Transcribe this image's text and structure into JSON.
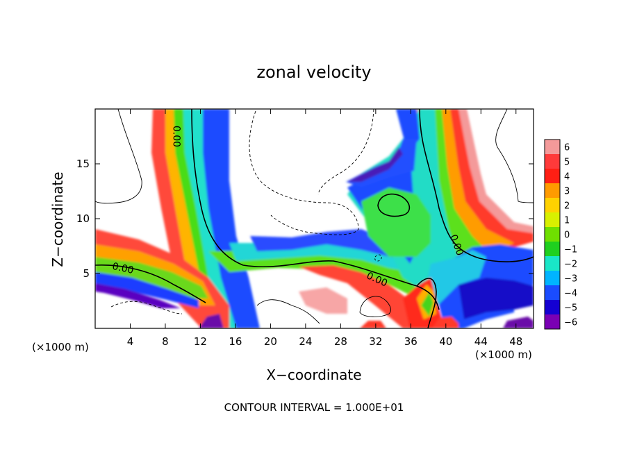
{
  "chart_data": {
    "type": "heatmap",
    "title": "zonal velocity",
    "xlabel": "X−coordinate",
    "ylabel": "Z−coordinate",
    "x_unit_left": "(×1000 m)",
    "x_unit_right": "(×1000 m)",
    "xlim": [
      0,
      50
    ],
    "ylim": [
      0,
      20
    ],
    "x_ticks": [
      4,
      8,
      12,
      16,
      20,
      24,
      28,
      32,
      36,
      40,
      44,
      48
    ],
    "y_ticks": [
      5,
      10,
      15
    ],
    "colorbar": {
      "min": -6,
      "max": 6,
      "ticks": [
        "6",
        "5",
        "4",
        "3",
        "2",
        "1",
        "0",
        "−1",
        "−2",
        "−3",
        "−4",
        "−5",
        "−6"
      ],
      "colors": [
        "#f49a9a",
        "#ff3a3a",
        "#ff1f14",
        "#ff9b00",
        "#ffd200",
        "#d8f000",
        "#6fe000",
        "#1fd01f",
        "#19e6c8",
        "#00b4ff",
        "#1a4cff",
        "#1400d2",
        "#7a00b4"
      ]
    },
    "contour_labels": [
      {
        "text": "0.00",
        "x": 8.9,
        "y": 17.5,
        "rotate": 90
      },
      {
        "text": "0.00",
        "x": 3.1,
        "y": 5.2,
        "rotate": 12
      },
      {
        "text": "0.00",
        "x": 32.0,
        "y": 4.2,
        "rotate": 24
      },
      {
        "text": "0.00",
        "x": 40.9,
        "y": 7.5,
        "rotate": 70
      }
    ],
    "contour_interval": "CONTOUR INTERVAL = 1.000E+01"
  }
}
